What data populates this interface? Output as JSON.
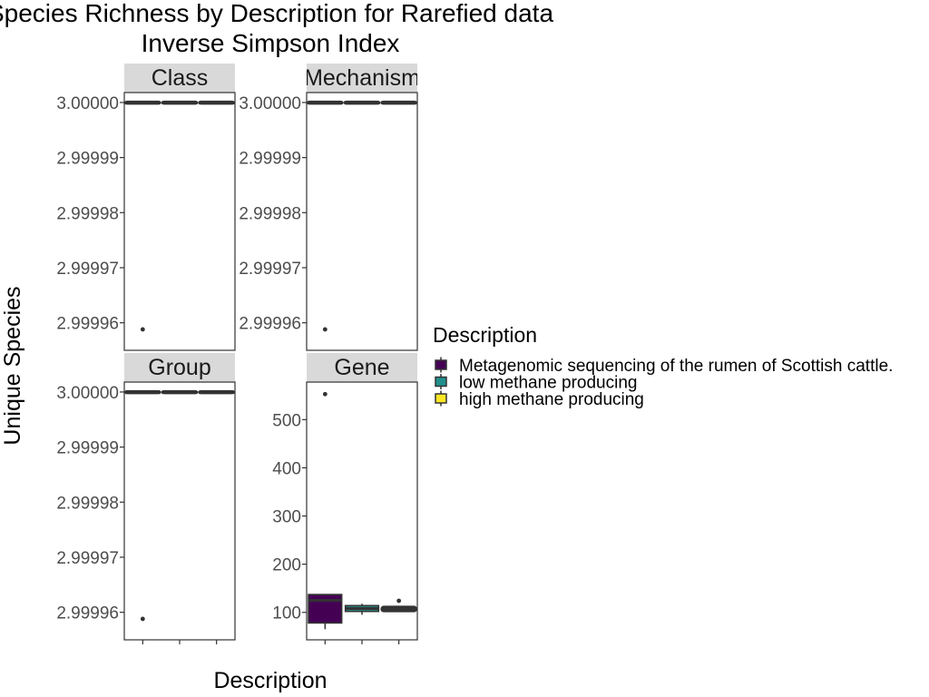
{
  "chart_data": {
    "type": "boxplot",
    "title_lines": [
      "Species Richness by Description for Rarefied data",
      "Inverse Simpson Index"
    ],
    "xlabel": "Description",
    "ylabel": "Unique Species",
    "legend": {
      "title": "Description",
      "position": "right",
      "entries": [
        {
          "label": "Metagenomic sequencing of the rumen of Scottish cattle.",
          "color": "#440154"
        },
        {
          "label": "low methane producing",
          "color": "#21908C"
        },
        {
          "label": "high methane producing",
          "color": "#FDE725"
        }
      ]
    },
    "grid": false,
    "categories": [
      "Metagenomic sequencing of the rumen of Scottish cattle.",
      "low methane producing",
      "high methane producing"
    ],
    "facets": [
      {
        "name": "Class",
        "ylim": [
          2.999955,
          3.0000018
        ],
        "ticks": [
          2.99996,
          2.99997,
          2.99998,
          2.99999,
          3.0
        ],
        "tick_labels": [
          "2.99996",
          "2.99997",
          "2.99998",
          "2.99999",
          "3.00000"
        ],
        "boxes": [
          {
            "category": "Metagenomic sequencing of the rumen of Scottish cattle.",
            "min": 3.0,
            "q1": 3.0,
            "median": 3.0,
            "q3": 3.0,
            "max": 3.0,
            "outliers": [
              2.9999588
            ]
          },
          {
            "category": "low methane producing",
            "min": 3.0,
            "q1": 3.0,
            "median": 3.0,
            "q3": 3.0,
            "max": 3.0,
            "outliers": []
          },
          {
            "category": "high methane producing",
            "min": 3.0,
            "q1": 3.0,
            "median": 3.0,
            "q3": 3.0,
            "max": 3.0,
            "outliers": []
          }
        ]
      },
      {
        "name": "Mechanism",
        "ylim": [
          2.999955,
          3.0000018
        ],
        "ticks": [
          2.99996,
          2.99997,
          2.99998,
          2.99999,
          3.0
        ],
        "tick_labels": [
          "2.99996",
          "2.99997",
          "2.99998",
          "2.99999",
          "3.00000"
        ],
        "boxes": [
          {
            "category": "Metagenomic sequencing of the rumen of Scottish cattle.",
            "min": 3.0,
            "q1": 3.0,
            "median": 3.0,
            "q3": 3.0,
            "max": 3.0,
            "outliers": [
              2.9999588
            ]
          },
          {
            "category": "low methane producing",
            "min": 3.0,
            "q1": 3.0,
            "median": 3.0,
            "q3": 3.0,
            "max": 3.0,
            "outliers": []
          },
          {
            "category": "high methane producing",
            "min": 3.0,
            "q1": 3.0,
            "median": 3.0,
            "q3": 3.0,
            "max": 3.0,
            "outliers": []
          }
        ]
      },
      {
        "name": "Group",
        "ylim": [
          2.999955,
          3.0000018
        ],
        "ticks": [
          2.99996,
          2.99997,
          2.99998,
          2.99999,
          3.0
        ],
        "tick_labels": [
          "2.99996",
          "2.99997",
          "2.99998",
          "2.99999",
          "3.00000"
        ],
        "boxes": [
          {
            "category": "Metagenomic sequencing of the rumen of Scottish cattle.",
            "min": 3.0,
            "q1": 3.0,
            "median": 3.0,
            "q3": 3.0,
            "max": 3.0,
            "outliers": [
              2.9999588
            ]
          },
          {
            "category": "low methane producing",
            "min": 3.0,
            "q1": 3.0,
            "median": 3.0,
            "q3": 3.0,
            "max": 3.0,
            "outliers": []
          },
          {
            "category": "high methane producing",
            "min": 3.0,
            "q1": 3.0,
            "median": 3.0,
            "q3": 3.0,
            "max": 3.0,
            "outliers": []
          }
        ]
      },
      {
        "name": "Gene",
        "ylim": [
          43,
          578
        ],
        "ticks": [
          100,
          200,
          300,
          400,
          500
        ],
        "tick_labels": [
          "100",
          "200",
          "300",
          "400",
          "500"
        ],
        "boxes": [
          {
            "category": "Metagenomic sequencing of the rumen of Scottish cattle.",
            "min": 65,
            "q1": 78,
            "median": 125,
            "q3": 137,
            "max": 137,
            "outliers": [
              553
            ]
          },
          {
            "category": "low methane producing",
            "min": 95,
            "q1": 102,
            "median": 108,
            "q3": 114,
            "max": 118,
            "outliers": []
          },
          {
            "category": "high methane producing",
            "min": 103,
            "q1": 104,
            "median": 107,
            "q3": 110,
            "max": 112,
            "outliers": [
              124
            ]
          }
        ]
      }
    ]
  }
}
